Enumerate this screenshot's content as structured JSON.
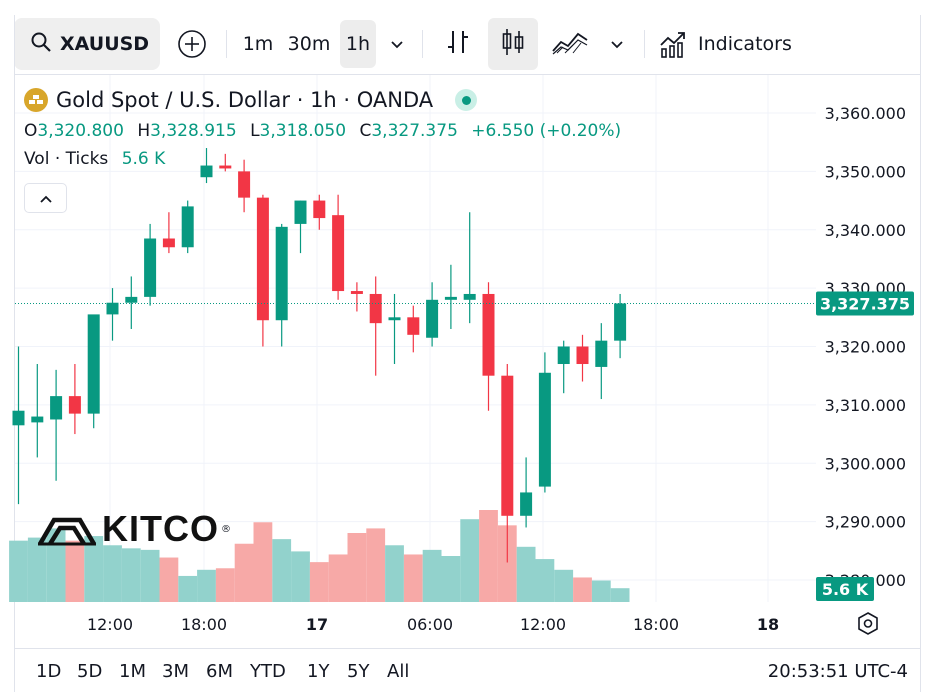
{
  "toolbar": {
    "symbol": "XAUUSD",
    "intervals": [
      "1m",
      "30m",
      "1h"
    ],
    "active_interval": "1h",
    "indicators_label": "Indicators",
    "icons": [
      "search-icon",
      "add-compare-icon",
      "chevron-down-icon",
      "bar-chart-icon",
      "candles-icon",
      "area-chart-icon",
      "indicators-icon"
    ]
  },
  "legend": {
    "title": "Gold Spot / U.S. Dollar · 1h · OANDA",
    "o_label": "O",
    "o_value": "3,320.800",
    "h_label": "H",
    "h_value": "3,328.915",
    "l_label": "L",
    "l_value": "3,318.050",
    "c_label": "C",
    "c_value": "3,327.375",
    "change": "+6.550 (+0.20%)",
    "vol_label": "Vol · Ticks",
    "vol_value": "5.6 K"
  },
  "price_scale": {
    "labels": [
      "3,360.000",
      "3,350.000",
      "3,340.000",
      "3,330.000",
      "3,320.000",
      "3,310.000",
      "3,300.000",
      "3,290.000",
      "3,280.000"
    ],
    "last_price_label": "3,327.375",
    "last_volume_label": "5.6 K"
  },
  "time_scale": {
    "labels": [
      "12:00",
      "18:00",
      "17",
      "06:00",
      "12:00",
      "18:00",
      "18"
    ]
  },
  "range_buttons": [
    "1D",
    "5D",
    "1M",
    "3M",
    "6M",
    "YTD",
    "1Y",
    "5Y",
    "All"
  ],
  "clock": "20:53:51 UTC-4",
  "watermark": "KITCO",
  "colors": {
    "up": "#089981",
    "down": "#f23645",
    "up_vol": "#92d2cc",
    "down_vol": "#f7a9a7"
  },
  "chart_data": {
    "type": "candlestick",
    "ylim": [
      3276,
      3367
    ],
    "last_price": 3327.375,
    "candles": [
      {
        "o": 3306.5,
        "h": 3320,
        "l": 3293,
        "c": 3309,
        "v": 40
      },
      {
        "o": 3307,
        "h": 3317,
        "l": 3301,
        "c": 3308,
        "v": 42
      },
      {
        "o": 3307.5,
        "h": 3316,
        "l": 3297,
        "c": 3311.5,
        "v": 48
      },
      {
        "o": 3311.5,
        "h": 3317,
        "l": 3305,
        "c": 3308.5,
        "v": 40
      },
      {
        "o": 3308.5,
        "h": 3325,
        "l": 3306,
        "c": 3325.5,
        "v": 43
      },
      {
        "o": 3325.5,
        "h": 3330,
        "l": 3321,
        "c": 3327.5,
        "v": 37
      },
      {
        "o": 3327.5,
        "h": 3332,
        "l": 3323,
        "c": 3328.5,
        "v": 35
      },
      {
        "o": 3328.5,
        "h": 3341,
        "l": 3327,
        "c": 3338.5,
        "v": 34
      },
      {
        "o": 3338.5,
        "h": 3343,
        "l": 3336,
        "c": 3337,
        "v": 29
      },
      {
        "o": 3337,
        "h": 3345,
        "l": 3336,
        "c": 3344,
        "v": 17
      },
      {
        "o": 3349,
        "h": 3354,
        "l": 3348,
        "c": 3351,
        "v": 21
      },
      {
        "o": 3351,
        "h": 3353,
        "l": 3350,
        "c": 3350.5,
        "v": 22
      },
      {
        "o": 3350,
        "h": 3352,
        "l": 3343,
        "c": 3345.5,
        "v": 38
      },
      {
        "o": 3345.5,
        "h": 3346,
        "l": 3320,
        "c": 3324.5,
        "v": 52
      },
      {
        "o": 3324.5,
        "h": 3341,
        "l": 3320,
        "c": 3340.5,
        "v": 41
      },
      {
        "o": 3341,
        "h": 3345,
        "l": 3336,
        "c": 3345,
        "v": 33
      },
      {
        "o": 3345,
        "h": 3346,
        "l": 3340,
        "c": 3342,
        "v": 26
      },
      {
        "o": 3342.5,
        "h": 3346,
        "l": 3328,
        "c": 3329.5,
        "v": 31
      },
      {
        "o": 3329.5,
        "h": 3331,
        "l": 3326,
        "c": 3329,
        "v": 45
      },
      {
        "o": 3329,
        "h": 3332,
        "l": 3315,
        "c": 3324,
        "v": 48
      },
      {
        "o": 3324.5,
        "h": 3329,
        "l": 3317,
        "c": 3325,
        "v": 37
      },
      {
        "o": 3325,
        "h": 3327,
        "l": 3319,
        "c": 3322,
        "v": 31
      },
      {
        "o": 3321.5,
        "h": 3331,
        "l": 3320,
        "c": 3328,
        "v": 34
      },
      {
        "o": 3328,
        "h": 3334,
        "l": 3323,
        "c": 3328.5,
        "v": 30
      },
      {
        "o": 3328,
        "h": 3343,
        "l": 3324,
        "c": 3329,
        "v": 54
      },
      {
        "o": 3329,
        "h": 3331,
        "l": 3309,
        "c": 3315,
        "v": 60
      },
      {
        "o": 3315,
        "h": 3317,
        "l": 3283,
        "c": 3291,
        "v": 50
      },
      {
        "o": 3291,
        "h": 3301,
        "l": 3289,
        "c": 3295,
        "v": 36
      },
      {
        "o": 3296,
        "h": 3319,
        "l": 3295,
        "c": 3315.5,
        "v": 28
      },
      {
        "o": 3317,
        "h": 3321,
        "l": 3312,
        "c": 3320,
        "v": 21
      },
      {
        "o": 3320,
        "h": 3322,
        "l": 3314,
        "c": 3317,
        "v": 16
      },
      {
        "o": 3316.5,
        "h": 3324,
        "l": 3311,
        "c": 3321,
        "v": 14
      },
      {
        "o": 3321,
        "h": 3329,
        "l": 3318,
        "c": 3327.375,
        "v": 9
      }
    ]
  }
}
